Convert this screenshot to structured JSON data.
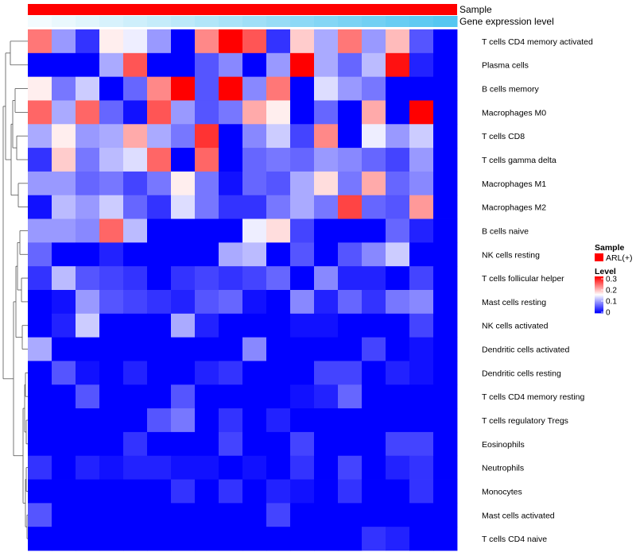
{
  "chart_data": {
    "type": "heatmap",
    "annotation_tracks": [
      {
        "name": "Sample",
        "color": "#ff0000"
      },
      {
        "name": "Gene expression level",
        "gradient": [
          "#f3fbfe",
          "#56c7f1"
        ]
      }
    ],
    "row_labels": [
      "T cells CD4 memory activated",
      "Plasma cells",
      "B cells memory",
      "Macrophages M0",
      "T cells CD8",
      "T cells gamma delta",
      "Macrophages M1",
      "Macrophages M2",
      "B cells naive",
      "NK cells resting",
      "T cells follicular helper",
      "Mast cells resting",
      "NK cells activated",
      "Dendritic cells activated",
      "Dendritic cells resting",
      "T cells CD4 memory resting",
      "T cells regulatory  Tregs",
      "Eosinophils",
      "Neutrophils",
      "Monocytes",
      "Mast cells activated",
      "T cells CD4 naive"
    ],
    "n_columns": 18,
    "color_scale": {
      "min": 0,
      "mid": 0.15,
      "max": 0.3,
      "low": "#0000ff",
      "mid_color": "#ffffff",
      "high": "#ff0000"
    },
    "values": [
      [
        0.23,
        0.09,
        0.03,
        0.16,
        0.14,
        0.09,
        0.0,
        0.22,
        0.3,
        0.25,
        0.03,
        0.18,
        0.1,
        0.23,
        0.09,
        0.19,
        0.05,
        null
      ],
      [
        0.0,
        0.0,
        0.0,
        0.1,
        0.25,
        0.0,
        0.0,
        0.05,
        0.08,
        0.0,
        0.09,
        0.3,
        0.1,
        0.06,
        0.11,
        0.29,
        0.02,
        null
      ],
      [
        0.16,
        0.07,
        0.12,
        0.0,
        0.06,
        0.22,
        0.3,
        0.05,
        0.3,
        0.08,
        0.23,
        0.0,
        0.13,
        0.09,
        0.07,
        0.0,
        0.0,
        null
      ],
      [
        0.24,
        0.1,
        0.24,
        0.06,
        0.01,
        0.25,
        0.09,
        0.05,
        0.07,
        0.2,
        0.16,
        0.0,
        0.06,
        0.0,
        0.2,
        0.0,
        0.3,
        null
      ],
      [
        0.1,
        0.16,
        0.09,
        0.1,
        0.2,
        0.1,
        0.07,
        0.27,
        0.0,
        0.08,
        0.12,
        0.04,
        0.22,
        0.0,
        0.14,
        0.09,
        0.12,
        null
      ],
      [
        0.03,
        0.18,
        0.07,
        0.11,
        0.13,
        0.24,
        0.0,
        0.24,
        0.0,
        0.06,
        0.07,
        0.06,
        0.09,
        0.08,
        0.06,
        0.04,
        0.09,
        null
      ],
      [
        0.09,
        0.09,
        0.06,
        0.07,
        0.04,
        0.07,
        0.16,
        0.07,
        0.01,
        0.06,
        0.05,
        0.1,
        0.17,
        0.07,
        0.2,
        0.06,
        0.08,
        null
      ],
      [
        0.01,
        0.11,
        0.09,
        0.12,
        0.06,
        0.03,
        0.13,
        0.07,
        0.03,
        0.03,
        0.07,
        0.1,
        0.07,
        0.26,
        0.06,
        0.05,
        0.21,
        null
      ],
      [
        0.09,
        0.09,
        0.08,
        0.24,
        0.11,
        0.0,
        0.0,
        0.0,
        0.0,
        0.14,
        0.17,
        0.04,
        0.0,
        0.0,
        0.0,
        0.06,
        0.02,
        null
      ],
      [
        0.06,
        0.0,
        0.0,
        0.02,
        0.0,
        0.0,
        0.0,
        0.0,
        0.1,
        0.11,
        0.0,
        0.05,
        0.0,
        0.05,
        0.08,
        0.12,
        0.0,
        null
      ],
      [
        0.03,
        0.11,
        0.05,
        0.04,
        0.03,
        0.0,
        0.03,
        0.04,
        0.03,
        0.04,
        0.06,
        0.0,
        0.08,
        0.02,
        0.02,
        0.0,
        0.04,
        null
      ],
      [
        0.0,
        0.01,
        0.09,
        0.05,
        0.04,
        0.03,
        0.02,
        0.05,
        0.06,
        0.01,
        0.0,
        0.08,
        0.02,
        0.06,
        0.03,
        0.07,
        0.08,
        null
      ],
      [
        0.0,
        0.02,
        0.12,
        0.0,
        0.0,
        0.0,
        0.1,
        0.02,
        0.0,
        0.0,
        0.0,
        0.01,
        0.01,
        0.0,
        0.0,
        0.0,
        0.04,
        null
      ],
      [
        0.1,
        0.0,
        0.0,
        0.0,
        0.0,
        0.0,
        0.0,
        0.0,
        0.0,
        0.08,
        0.0,
        0.0,
        0.0,
        0.0,
        0.04,
        0.0,
        0.01,
        null
      ],
      [
        0.0,
        0.05,
        0.01,
        0.0,
        0.02,
        0.0,
        0.0,
        0.02,
        0.03,
        0.0,
        0.0,
        0.0,
        0.04,
        0.04,
        0.0,
        0.02,
        0.01,
        null
      ],
      [
        0.0,
        0.0,
        0.05,
        0.0,
        0.0,
        0.0,
        0.05,
        0.0,
        0.0,
        0.0,
        0.0,
        0.01,
        0.02,
        0.06,
        0.0,
        0.0,
        0.0,
        null
      ],
      [
        0.0,
        0.0,
        0.0,
        0.0,
        0.0,
        0.05,
        0.07,
        0.0,
        0.03,
        0.0,
        0.02,
        0.0,
        0.0,
        0.0,
        0.0,
        0.0,
        0.0,
        null
      ],
      [
        0.0,
        0.0,
        0.0,
        0.0,
        0.03,
        0.0,
        0.0,
        0.0,
        0.04,
        0.0,
        0.0,
        0.04,
        0.0,
        0.0,
        0.0,
        0.04,
        0.04,
        null
      ],
      [
        0.03,
        0.0,
        0.02,
        0.01,
        0.02,
        0.02,
        0.01,
        0.01,
        0.0,
        0.01,
        0.0,
        0.03,
        0.0,
        0.04,
        0.0,
        0.02,
        0.03,
        null
      ],
      [
        0.0,
        0.0,
        0.0,
        0.0,
        0.0,
        0.0,
        0.03,
        0.0,
        0.03,
        0.0,
        0.02,
        0.01,
        0.0,
        0.03,
        0.0,
        0.0,
        0.03,
        null
      ],
      [
        0.05,
        0.0,
        0.0,
        0.0,
        0.0,
        0.0,
        0.0,
        0.0,
        0.0,
        0.0,
        0.04,
        0.0,
        0.0,
        0.0,
        0.0,
        0.0,
        0.0,
        null
      ],
      [
        0.0,
        0.0,
        0.0,
        0.0,
        0.0,
        0.0,
        0.0,
        0.0,
        0.0,
        0.0,
        0.0,
        0.0,
        0.0,
        0.0,
        0.03,
        0.02,
        0.0,
        null
      ]
    ],
    "legend": {
      "sample_title": "Sample",
      "sample_entry": "ARL(+)",
      "level_title": "Level",
      "level_ticks": [
        "0.3",
        "0.2",
        "0.1",
        "0"
      ],
      "position": "right"
    }
  }
}
